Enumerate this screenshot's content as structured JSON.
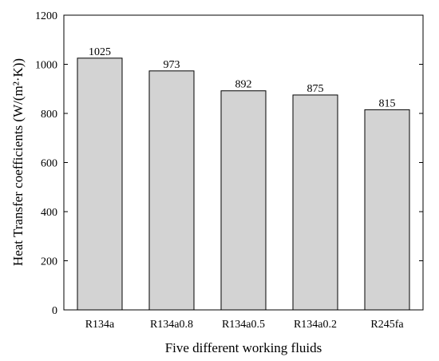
{
  "chart_data": {
    "type": "bar",
    "title": "",
    "xlabel": "Five different working fluids",
    "ylabel": "Heat Transfer coefficients (W/(m²·K))",
    "categories": [
      "R134a",
      "R134a0.8",
      "R134a0.5",
      "R134a0.2",
      "R245fa"
    ],
    "values": [
      1025,
      973,
      892,
      875,
      815
    ],
    "data_labels": [
      "1025",
      "973",
      "892",
      "875",
      "815"
    ],
    "ylim": [
      0,
      1200
    ],
    "yticks": [
      0,
      200,
      400,
      600,
      800,
      1000,
      1200
    ],
    "grid": false,
    "legend": "none",
    "colors": {
      "bar_fill": "#d3d3d3",
      "bar_stroke": "#000000",
      "axis": "#000000"
    }
  }
}
